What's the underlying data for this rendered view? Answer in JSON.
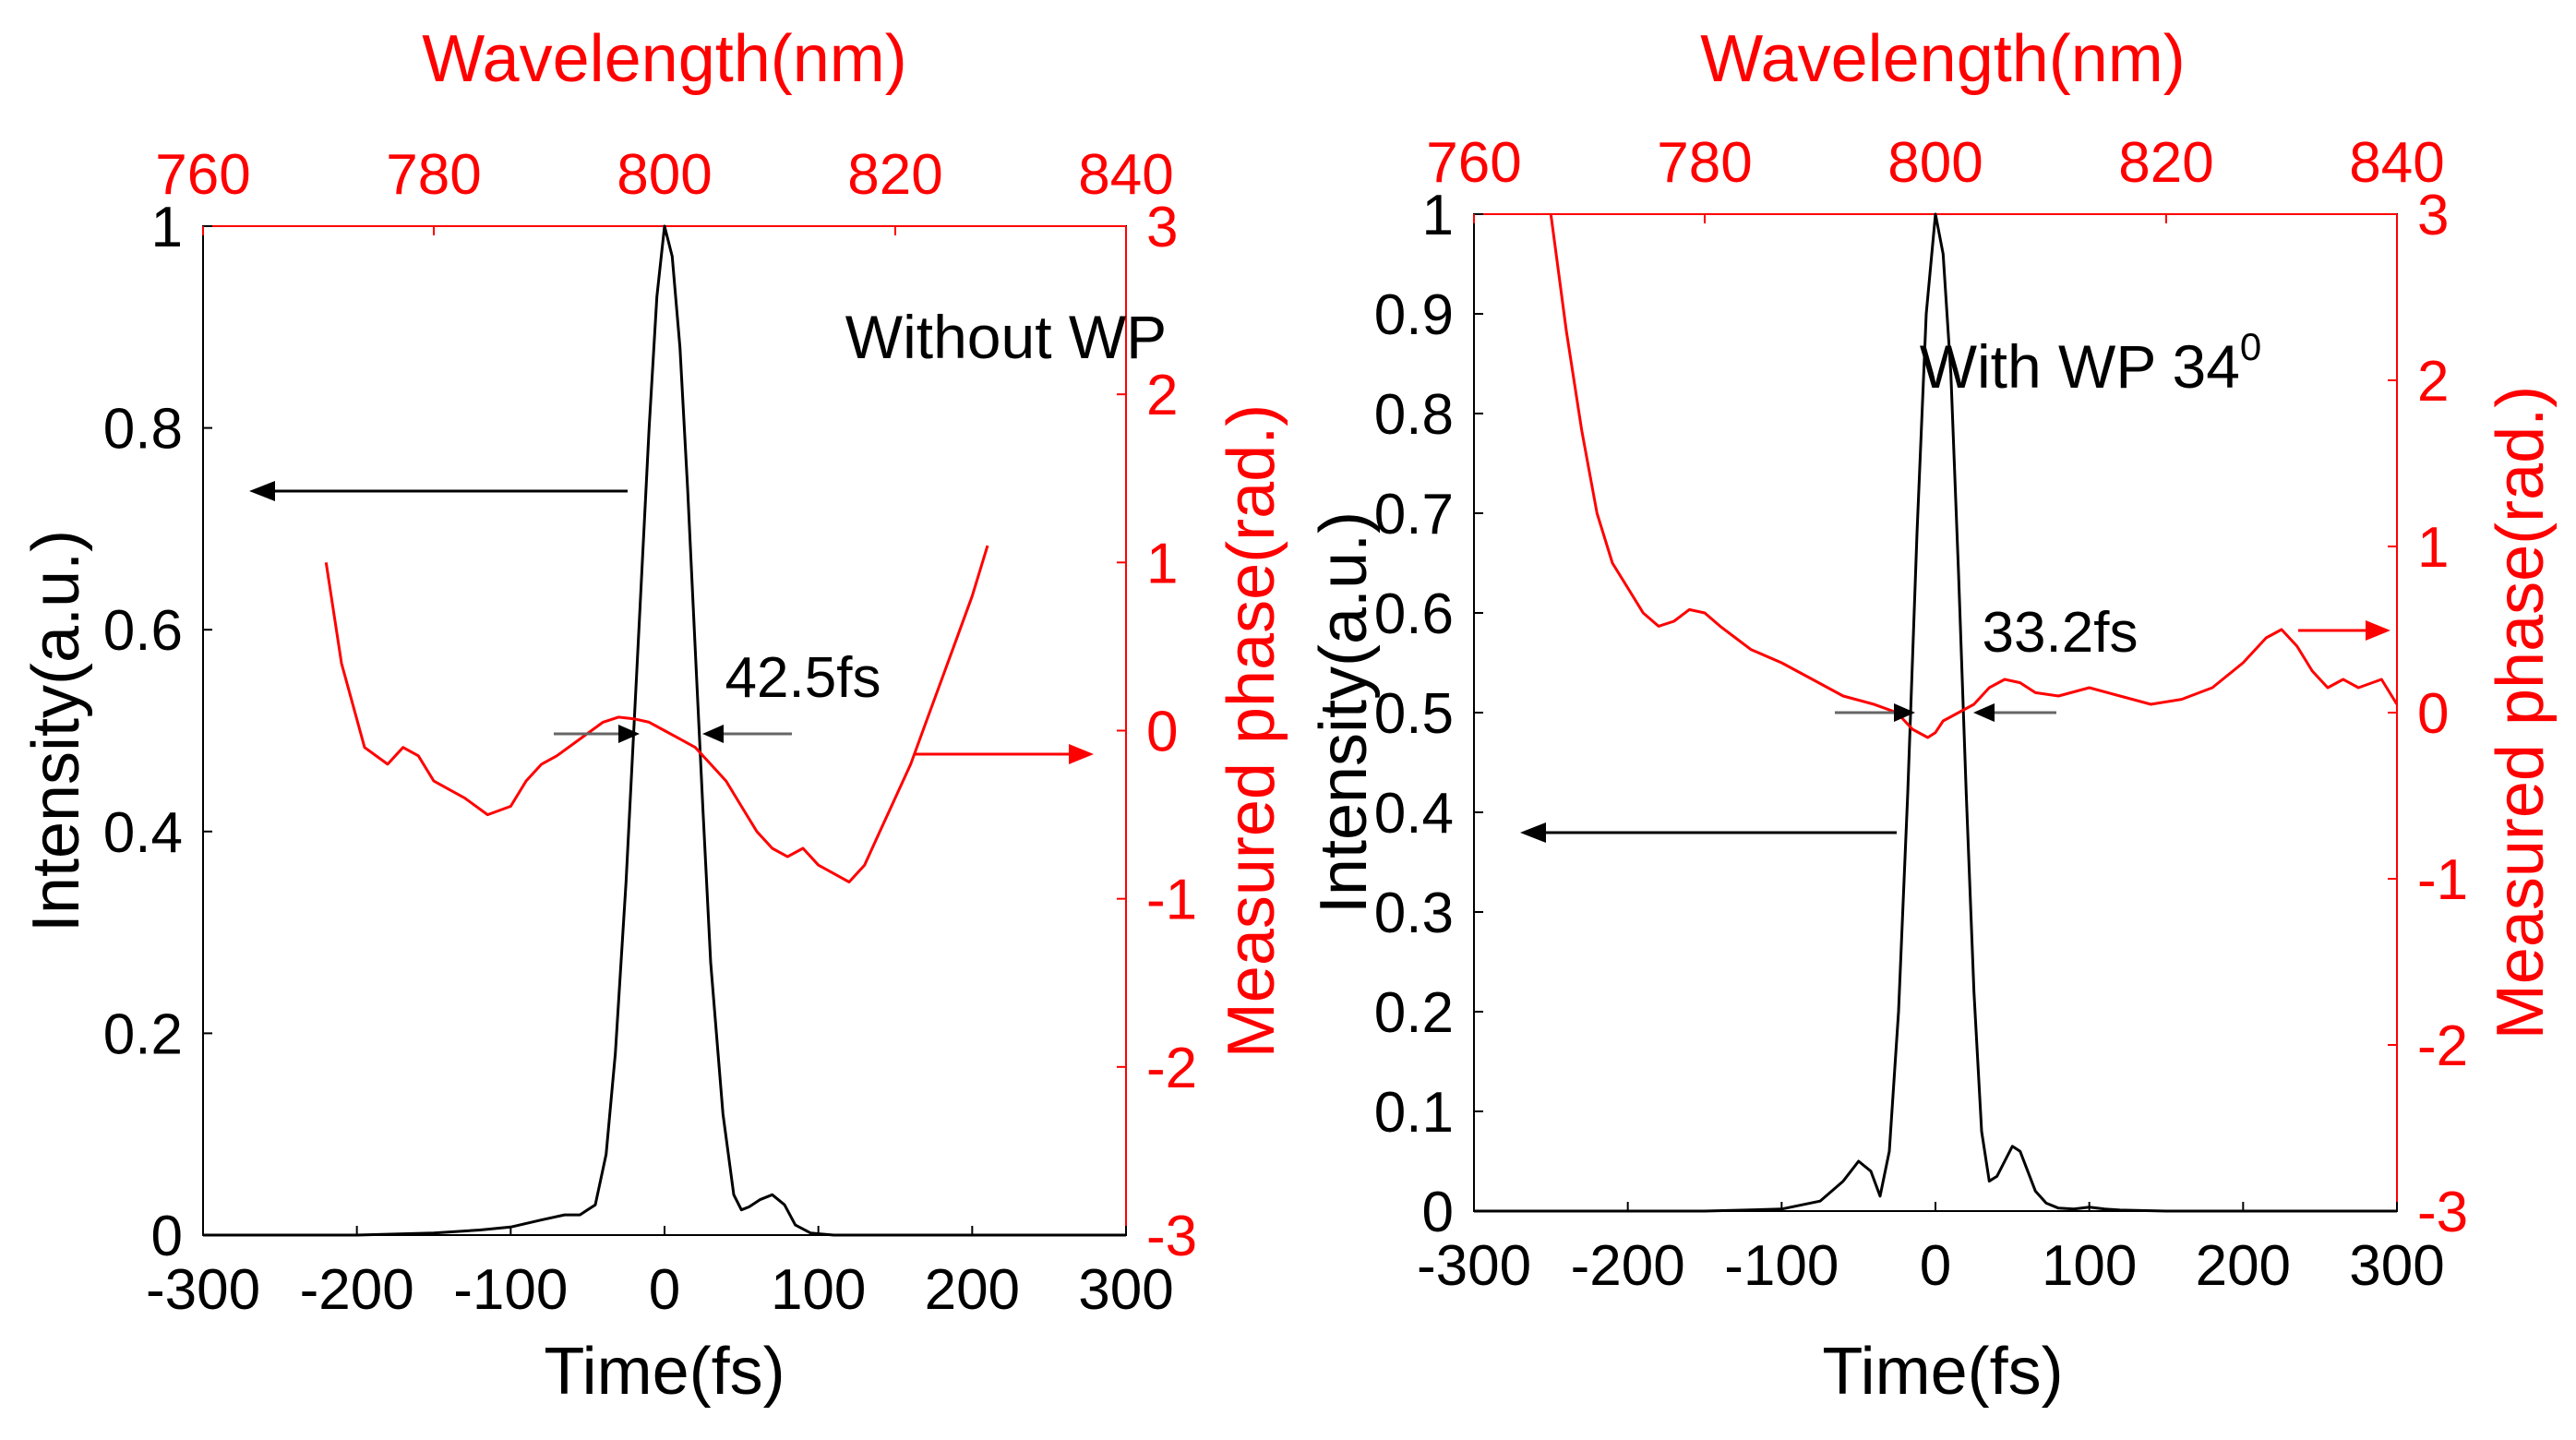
{
  "colors": {
    "primary": "#000000",
    "secondary": "#ff0000"
  },
  "chart_data": [
    {
      "type": "line",
      "annotation": "Without WP",
      "annotation_sup": "",
      "fwhm_label": "42.5fs",
      "fwhm_fs": 42.5,
      "xlabel": "Time(fs)",
      "ylabel": "Intensity(a.u.)",
      "y2label": "Measured phase(rad.)",
      "x2label": "Wavelength(nm)",
      "xlim": [
        -300,
        300
      ],
      "ylim": [
        0,
        1
      ],
      "y2lim": [
        -3,
        3
      ],
      "x2lim": [
        760,
        840
      ],
      "xticks": [
        -300,
        -200,
        -100,
        0,
        100,
        200,
        300
      ],
      "xtick_labels": [
        "-300",
        "-200",
        "-100",
        "0",
        "100",
        "200",
        "300"
      ],
      "yticks": [
        0,
        0.2,
        0.4,
        0.6,
        0.8,
        1
      ],
      "ytick_labels": [
        "0",
        "0.2",
        "0.4",
        "0.6",
        "0.8",
        "1"
      ],
      "y2ticks": [
        -3,
        -2,
        -1,
        0,
        1,
        2,
        3
      ],
      "y2tick_labels": [
        "-3",
        "-2",
        "-1",
        "0",
        "1",
        "2",
        "3"
      ],
      "x2ticks": [
        760,
        780,
        800,
        820,
        840
      ],
      "x2tick_labels": [
        "760",
        "780",
        "800",
        "820",
        "840"
      ],
      "series": [
        {
          "name": "Intensity",
          "axis": "left",
          "color": "#000000",
          "x": [
            -300,
            -200,
            -150,
            -120,
            -100,
            -80,
            -65,
            -55,
            -45,
            -38,
            -32,
            -25,
            -18,
            -10,
            -5,
            0,
            5,
            10,
            15,
            20,
            25,
            30,
            38,
            45,
            50,
            55,
            62,
            70,
            78,
            85,
            95,
            110,
            150,
            200,
            300
          ],
          "y": [
            0,
            0,
            0.002,
            0.005,
            0.008,
            0.015,
            0.02,
            0.02,
            0.03,
            0.08,
            0.18,
            0.35,
            0.56,
            0.8,
            0.93,
            1.0,
            0.97,
            0.88,
            0.74,
            0.58,
            0.42,
            0.27,
            0.12,
            0.04,
            0.025,
            0.028,
            0.035,
            0.04,
            0.03,
            0.01,
            0.002,
            0,
            0,
            0,
            0
          ]
        },
        {
          "name": "Phase",
          "axis": "right",
          "color": "#ff0000",
          "x": [
            -220,
            -210,
            -195,
            -180,
            -170,
            -160,
            -150,
            -140,
            -130,
            -115,
            -100,
            -90,
            -80,
            -70,
            -55,
            -40,
            -30,
            -20,
            -10,
            0,
            10,
            20,
            30,
            40,
            50,
            60,
            70,
            80,
            90,
            100,
            110,
            120,
            130,
            140,
            150,
            160,
            170,
            180,
            190,
            200,
            210
          ],
          "y": [
            1.0,
            0.4,
            -0.1,
            -0.2,
            -0.1,
            -0.15,
            -0.3,
            -0.35,
            -0.4,
            -0.5,
            -0.45,
            -0.3,
            -0.2,
            -0.15,
            -0.05,
            0.05,
            0.08,
            0.07,
            0.05,
            0.0,
            -0.05,
            -0.1,
            -0.2,
            -0.3,
            -0.45,
            -0.6,
            -0.7,
            -0.75,
            -0.7,
            -0.8,
            -0.85,
            -0.9,
            -0.8,
            -0.6,
            -0.4,
            -0.2,
            0.05,
            0.3,
            0.55,
            0.8,
            1.1
          ]
        }
      ]
    },
    {
      "type": "line",
      "annotation": "With WP 34",
      "annotation_sup": "0",
      "fwhm_label": "33.2fs",
      "fwhm_fs": 33.2,
      "xlabel": "Time(fs)",
      "ylabel": "Intensity(a.u.)",
      "y2label": "Measured phase(rad.)",
      "x2label": "Wavelength(nm)",
      "xlim": [
        -300,
        300
      ],
      "ylim": [
        0,
        1
      ],
      "y2lim": [
        -3,
        3
      ],
      "x2lim": [
        760,
        840
      ],
      "xticks": [
        -300,
        -200,
        -100,
        0,
        100,
        200,
        300
      ],
      "xtick_labels": [
        "-300",
        "-200",
        "-100",
        "0",
        "100",
        "200",
        "300"
      ],
      "yticks": [
        0,
        0.1,
        0.2,
        0.3,
        0.4,
        0.5,
        0.6,
        0.7,
        0.8,
        0.9,
        1
      ],
      "ytick_labels": [
        "0",
        "0.1",
        "0.2",
        "0.3",
        "0.4",
        "0.5",
        "0.6",
        "0.7",
        "0.8",
        "0.9",
        "1"
      ],
      "y2ticks": [
        -3,
        -2,
        -1,
        0,
        1,
        2,
        3
      ],
      "y2tick_labels": [
        "-3",
        "-2",
        "-1",
        "0",
        "1",
        "2",
        "3"
      ],
      "x2ticks": [
        760,
        780,
        800,
        820,
        840
      ],
      "x2tick_labels": [
        "760",
        "780",
        "800",
        "820",
        "840"
      ],
      "series": [
        {
          "name": "Intensity",
          "axis": "left",
          "color": "#000000",
          "x": [
            -300,
            -150,
            -100,
            -75,
            -60,
            -50,
            -42,
            -36,
            -30,
            -24,
            -18,
            -12,
            -6,
            0,
            5,
            10,
            15,
            20,
            25,
            30,
            35,
            40,
            45,
            50,
            55,
            60,
            65,
            72,
            80,
            90,
            100,
            110,
            120,
            150,
            300
          ],
          "y": [
            0,
            0,
            0.002,
            0.01,
            0.03,
            0.05,
            0.04,
            0.015,
            0.06,
            0.2,
            0.42,
            0.68,
            0.9,
            1.0,
            0.96,
            0.84,
            0.64,
            0.42,
            0.22,
            0.08,
            0.03,
            0.035,
            0.05,
            0.065,
            0.06,
            0.04,
            0.02,
            0.008,
            0.003,
            0.002,
            0.004,
            0.002,
            0.001,
            0,
            0
          ]
        },
        {
          "name": "Phase",
          "axis": "right",
          "color": "#ff0000",
          "x": [
            -250,
            -240,
            -230,
            -220,
            -210,
            -200,
            -190,
            -180,
            -170,
            -160,
            -150,
            -140,
            -130,
            -120,
            -100,
            -80,
            -60,
            -40,
            -25,
            -15,
            -5,
            0,
            5,
            15,
            25,
            35,
            45,
            55,
            65,
            80,
            100,
            120,
            140,
            160,
            180,
            200,
            215,
            225,
            235,
            245,
            255,
            265,
            275,
            290,
            300
          ],
          "y": [
            3.0,
            2.3,
            1.7,
            1.2,
            0.9,
            0.75,
            0.6,
            0.52,
            0.55,
            0.62,
            0.6,
            0.52,
            0.45,
            0.38,
            0.3,
            0.2,
            0.1,
            0.05,
            0.0,
            -0.1,
            -0.15,
            -0.12,
            -0.05,
            0.0,
            0.05,
            0.15,
            0.2,
            0.18,
            0.12,
            0.1,
            0.15,
            0.1,
            0.05,
            0.08,
            0.15,
            0.3,
            0.45,
            0.5,
            0.4,
            0.25,
            0.15,
            0.2,
            0.15,
            0.2,
            0.05
          ]
        }
      ]
    }
  ]
}
